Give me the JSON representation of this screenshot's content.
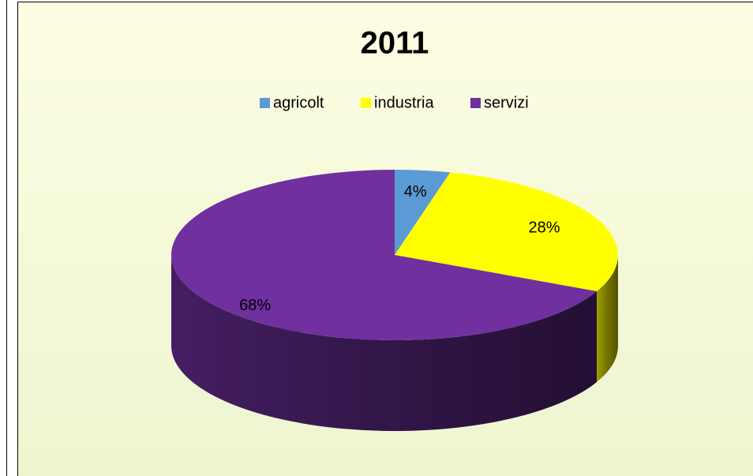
{
  "chart_data": {
    "type": "pie",
    "title": "2011",
    "categories": [
      "agricolt",
      "industria",
      "servizi"
    ],
    "values": [
      4,
      28,
      68
    ],
    "value_labels": [
      "4%",
      "28%",
      "68%"
    ],
    "colors": [
      "#5b9bd5",
      "#ffff00",
      "#7030a0"
    ],
    "legend": "top"
  }
}
